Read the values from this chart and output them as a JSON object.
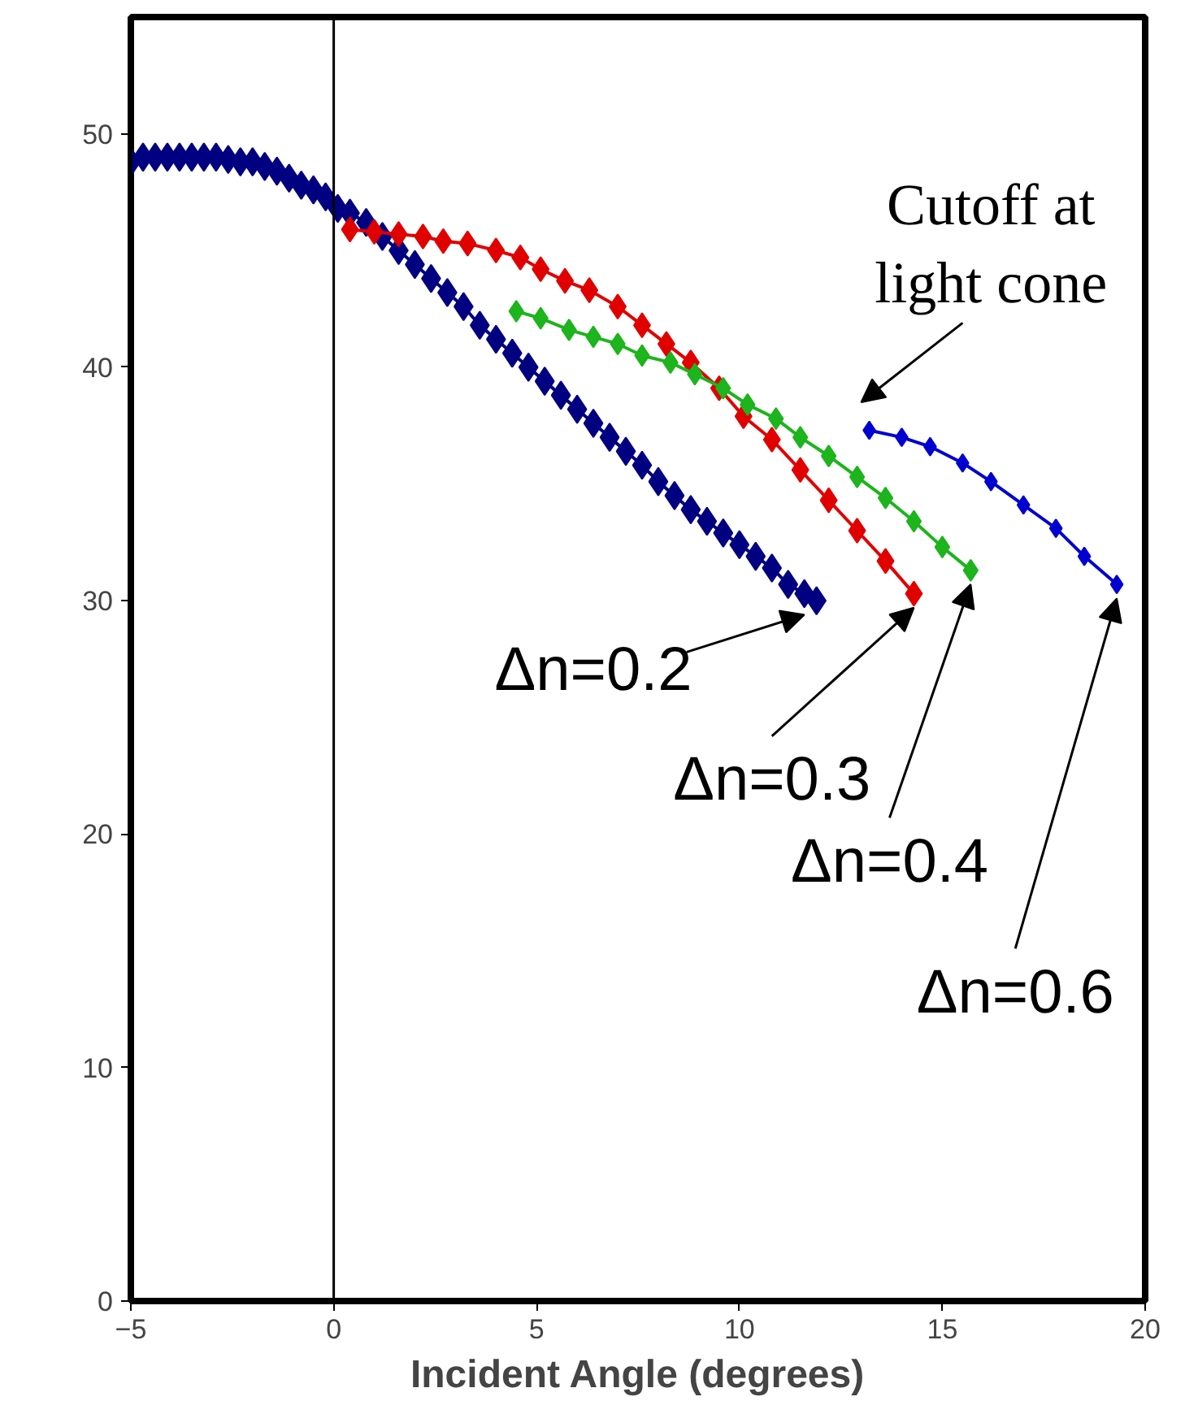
{
  "chart_data": {
    "type": "line",
    "xlabel": "Incident Angle (degrees)",
    "xlim": [
      -5,
      20
    ],
    "xticks": [
      -5,
      0,
      5,
      10,
      15,
      20
    ],
    "ylim": [
      0,
      55
    ],
    "yticks": [
      0,
      10,
      20,
      30,
      40,
      50
    ],
    "grid": false,
    "marker": "diamond",
    "line_style": "solid",
    "ref_lines": [
      {
        "axis": "x",
        "value": 0,
        "color": "#000000"
      }
    ],
    "annotations": [
      "Cutoff at\nlight cone"
    ],
    "series": [
      {
        "name": "Δn=0.2",
        "color": "#000080",
        "x": [
          -5.0,
          -4.7,
          -4.4,
          -4.1,
          -3.8,
          -3.5,
          -3.2,
          -2.9,
          -2.6,
          -2.3,
          -2.0,
          -1.7,
          -1.4,
          -1.1,
          -0.8,
          -0.5,
          -0.2,
          0.1,
          0.4,
          0.8,
          1.2,
          1.6,
          2.0,
          2.4,
          2.8,
          3.2,
          3.6,
          4.0,
          4.4,
          4.8,
          5.2,
          5.6,
          6.0,
          6.4,
          6.8,
          7.2,
          7.6,
          8.0,
          8.4,
          8.8,
          9.2,
          9.6,
          10.0,
          10.4,
          10.8,
          11.2,
          11.6,
          11.9
        ],
        "values": [
          48.8,
          49.0,
          49.0,
          49.0,
          49.0,
          49.0,
          49.0,
          49.0,
          48.9,
          48.8,
          48.8,
          48.6,
          48.4,
          48.1,
          47.8,
          47.6,
          47.3,
          46.8,
          46.6,
          46.2,
          45.6,
          45.0,
          44.4,
          43.8,
          43.2,
          42.6,
          41.8,
          41.2,
          40.6,
          40.0,
          39.4,
          38.8,
          38.2,
          37.6,
          37.0,
          36.4,
          35.8,
          35.1,
          34.5,
          33.9,
          33.4,
          32.9,
          32.4,
          31.9,
          31.4,
          30.7,
          30.3,
          30.0
        ]
      },
      {
        "name": "Δn=0.3",
        "color": "#e00000",
        "x": [
          0.4,
          1.0,
          1.6,
          2.2,
          2.7,
          3.3,
          4.0,
          4.6,
          5.1,
          5.7,
          6.3,
          7.0,
          7.6,
          8.2,
          8.8,
          9.5,
          10.1,
          10.8,
          11.5,
          12.2,
          12.9,
          13.6,
          14.3
        ],
        "values": [
          45.9,
          45.8,
          45.7,
          45.6,
          45.4,
          45.3,
          45.0,
          44.7,
          44.2,
          43.7,
          43.3,
          42.6,
          41.8,
          41.0,
          40.2,
          39.1,
          37.9,
          36.9,
          35.6,
          34.3,
          33.0,
          31.7,
          30.3
        ]
      },
      {
        "name": "Δn=0.4",
        "color": "#1db41d",
        "x": [
          4.5,
          5.1,
          5.8,
          6.4,
          7.0,
          7.6,
          8.3,
          8.9,
          9.6,
          10.2,
          10.9,
          11.5,
          12.2,
          12.9,
          13.6,
          14.3,
          15.0,
          15.7
        ],
        "values": [
          42.4,
          42.1,
          41.6,
          41.3,
          41.0,
          40.5,
          40.2,
          39.7,
          39.1,
          38.4,
          37.8,
          37.0,
          36.2,
          35.3,
          34.4,
          33.4,
          32.3,
          31.3
        ]
      },
      {
        "name": "Δn=0.6",
        "color": "#0000d0",
        "x": [
          13.2,
          14.0,
          14.7,
          15.5,
          16.2,
          17.0,
          17.8,
          18.5,
          19.3
        ],
        "values": [
          37.3,
          37.0,
          36.6,
          35.9,
          35.1,
          34.1,
          33.1,
          31.9,
          30.7
        ]
      }
    ]
  }
}
